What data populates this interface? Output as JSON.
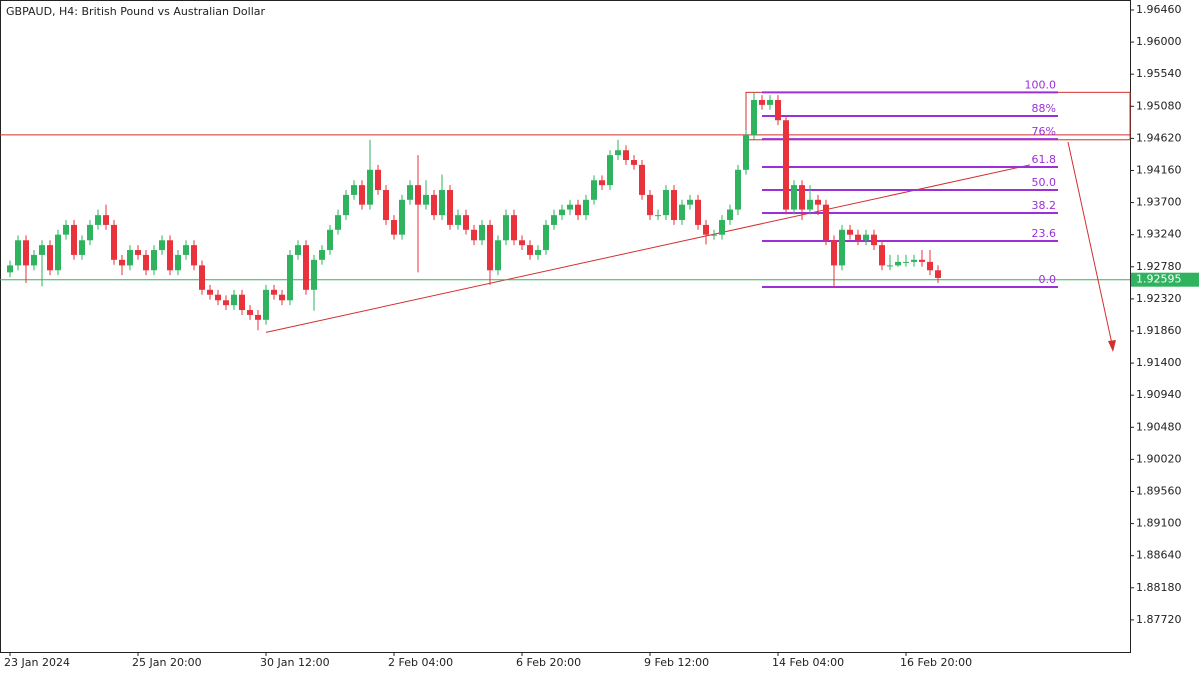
{
  "chart_data": {
    "type": "candlestick",
    "title": "GBPAUD, H4:  British Pound vs Australian Dollar",
    "up_color": "#2fb35e",
    "down_color": "#e8323c",
    "ylim": [
      1.8726,
      1.96603
    ],
    "yticks": [
      {
        "value": 1.9646,
        "label": "1.96460"
      },
      {
        "value": 1.96,
        "label": "1.96000"
      },
      {
        "value": 1.9554,
        "label": "1.95540"
      },
      {
        "value": 1.9508,
        "label": "1.95080"
      },
      {
        "value": 1.9462,
        "label": "1.94620"
      },
      {
        "value": 1.9416,
        "label": "1.94160"
      },
      {
        "value": 1.937,
        "label": "1.93700"
      },
      {
        "value": 1.9324,
        "label": "1.93240"
      },
      {
        "value": 1.9278,
        "label": "1.92780"
      },
      {
        "value": 1.9232,
        "label": "1.92320"
      },
      {
        "value": 1.9186,
        "label": "1.91860"
      },
      {
        "value": 1.914,
        "label": "1.91400"
      },
      {
        "value": 1.9094,
        "label": "1.90940"
      },
      {
        "value": 1.9048,
        "label": "1.90480"
      },
      {
        "value": 1.9002,
        "label": "1.90020"
      },
      {
        "value": 1.8956,
        "label": "1.89560"
      },
      {
        "value": 1.891,
        "label": "1.89100"
      },
      {
        "value": 1.8864,
        "label": "1.88640"
      },
      {
        "value": 1.8818,
        "label": "1.88180"
      },
      {
        "value": 1.8772,
        "label": "1.87720"
      }
    ],
    "x_labels": [
      {
        "index": 0,
        "label": "23 Jan 2024"
      },
      {
        "index": 16,
        "label": "25 Jan 20:00"
      },
      {
        "index": 32,
        "label": "30 Jan 12:00"
      },
      {
        "index": 48,
        "label": "2 Feb 04:00"
      },
      {
        "index": 64,
        "label": "6 Feb 20:00"
      },
      {
        "index": 80,
        "label": "9 Feb 12:00"
      },
      {
        "index": 96,
        "label": "14 Feb 04:00"
      },
      {
        "index": 112,
        "label": "16 Feb 20:00"
      }
    ],
    "current_price": {
      "value": 1.92595,
      "label": "1.92595",
      "color": "#2fb35e"
    },
    "resistance": {
      "value": 1.9467,
      "color": "#d32f2f"
    },
    "box": {
      "start": 92,
      "top": 1.9528,
      "bottom": 1.946,
      "color": "#d32f2f"
    },
    "trendline": {
      "start": [
        32,
        1.9184
      ],
      "end": [
        127.5,
        1.9424
      ],
      "color": "#d32f2f"
    },
    "fib": {
      "start": 94,
      "color": "#9b30d9",
      "levels": [
        {
          "value": 1.9528,
          "label": "100.0"
        },
        {
          "value": 1.9494,
          "label": "88%"
        },
        {
          "value": 1.9461,
          "label": "76%"
        },
        {
          "value": 1.9421,
          "label": "61.8"
        },
        {
          "value": 1.9388,
          "label": "50.0"
        },
        {
          "value": 1.9355,
          "label": "38.2"
        },
        {
          "value": 1.9315,
          "label": "23.6"
        },
        {
          "value": 1.9249,
          "label": "0.0"
        }
      ]
    },
    "ohlc": [
      [
        1.927,
        1.9287,
        1.9263,
        1.928
      ],
      [
        1.928,
        1.9323,
        1.9273,
        1.9316
      ],
      [
        1.9316,
        1.9323,
        1.9255,
        1.928
      ],
      [
        1.928,
        1.9302,
        1.9273,
        1.9295
      ],
      [
        1.9295,
        1.9316,
        1.925,
        1.9309
      ],
      [
        1.9309,
        1.9316,
        1.9266,
        1.9273
      ],
      [
        1.9273,
        1.9331,
        1.9266,
        1.9324
      ],
      [
        1.9324,
        1.9345,
        1.9317,
        1.9338
      ],
      [
        1.9338,
        1.9345,
        1.9288,
        1.9295
      ],
      [
        1.9295,
        1.9323,
        1.9288,
        1.9316
      ],
      [
        1.9316,
        1.9345,
        1.9309,
        1.9338
      ],
      [
        1.9338,
        1.936,
        1.9331,
        1.9352
      ],
      [
        1.9352,
        1.9367,
        1.9331,
        1.9338
      ],
      [
        1.9338,
        1.9345,
        1.9281,
        1.9288
      ],
      [
        1.9288,
        1.9295,
        1.9266,
        1.928
      ],
      [
        1.928,
        1.9309,
        1.9273,
        1.9302
      ],
      [
        1.9302,
        1.9309,
        1.9288,
        1.9295
      ],
      [
        1.9295,
        1.9302,
        1.9266,
        1.9273
      ],
      [
        1.9273,
        1.9309,
        1.9266,
        1.9302
      ],
      [
        1.9302,
        1.9323,
        1.9295,
        1.9316
      ],
      [
        1.9316,
        1.9323,
        1.9266,
        1.9273
      ],
      [
        1.9273,
        1.9302,
        1.9266,
        1.9295
      ],
      [
        1.9295,
        1.9316,
        1.9288,
        1.9309
      ],
      [
        1.9309,
        1.9316,
        1.9273,
        1.928
      ],
      [
        1.928,
        1.9287,
        1.9238,
        1.9245
      ],
      [
        1.9245,
        1.9252,
        1.9231,
        1.9238
      ],
      [
        1.9238,
        1.9245,
        1.9223,
        1.923
      ],
      [
        1.923,
        1.9237,
        1.9216,
        1.9223
      ],
      [
        1.9223,
        1.9245,
        1.9216,
        1.9238
      ],
      [
        1.9238,
        1.9245,
        1.9209,
        1.9216
      ],
      [
        1.9216,
        1.9223,
        1.9202,
        1.9209
      ],
      [
        1.9209,
        1.9216,
        1.9187,
        1.9202
      ],
      [
        1.9202,
        1.9252,
        1.9195,
        1.9245
      ],
      [
        1.9245,
        1.9252,
        1.9231,
        1.9238
      ],
      [
        1.9238,
        1.9245,
        1.9223,
        1.923
      ],
      [
        1.923,
        1.9302,
        1.9223,
        1.9295
      ],
      [
        1.9295,
        1.9316,
        1.9288,
        1.9309
      ],
      [
        1.9309,
        1.9316,
        1.9238,
        1.9245
      ],
      [
        1.9245,
        1.9295,
        1.9215,
        1.9288
      ],
      [
        1.9288,
        1.9309,
        1.9281,
        1.9302
      ],
      [
        1.9302,
        1.9338,
        1.9295,
        1.9331
      ],
      [
        1.9331,
        1.936,
        1.9324,
        1.9352
      ],
      [
        1.9352,
        1.9388,
        1.9345,
        1.9381
      ],
      [
        1.9381,
        1.9402,
        1.9374,
        1.9395
      ],
      [
        1.9395,
        1.9402,
        1.936,
        1.9367
      ],
      [
        1.9367,
        1.946,
        1.936,
        1.9417
      ],
      [
        1.9417,
        1.9424,
        1.9381,
        1.9388
      ],
      [
        1.9388,
        1.9395,
        1.9338,
        1.9345
      ],
      [
        1.9345,
        1.9352,
        1.9317,
        1.9324
      ],
      [
        1.9324,
        1.9381,
        1.9317,
        1.9374
      ],
      [
        1.9374,
        1.9402,
        1.9367,
        1.9395
      ],
      [
        1.9395,
        1.9438,
        1.927,
        1.9367
      ],
      [
        1.9367,
        1.9402,
        1.936,
        1.9381
      ],
      [
        1.9381,
        1.9388,
        1.9345,
        1.9352
      ],
      [
        1.9352,
        1.941,
        1.9345,
        1.9388
      ],
      [
        1.9388,
        1.9395,
        1.9331,
        1.9338
      ],
      [
        1.9338,
        1.936,
        1.9331,
        1.9352
      ],
      [
        1.9352,
        1.936,
        1.9324,
        1.9331
      ],
      [
        1.9331,
        1.9338,
        1.9309,
        1.9316
      ],
      [
        1.9316,
        1.9345,
        1.9309,
        1.9338
      ],
      [
        1.9338,
        1.9345,
        1.9252,
        1.9273
      ],
      [
        1.9273,
        1.9323,
        1.9266,
        1.9316
      ],
      [
        1.9316,
        1.936,
        1.9309,
        1.9352
      ],
      [
        1.9352,
        1.936,
        1.9309,
        1.9316
      ],
      [
        1.9316,
        1.9323,
        1.9302,
        1.9309
      ],
      [
        1.9309,
        1.9316,
        1.9288,
        1.9295
      ],
      [
        1.9295,
        1.9309,
        1.9288,
        1.9302
      ],
      [
        1.9302,
        1.9345,
        1.9295,
        1.9338
      ],
      [
        1.9338,
        1.936,
        1.9331,
        1.9352
      ],
      [
        1.9352,
        1.9367,
        1.9345,
        1.936
      ],
      [
        1.936,
        1.9374,
        1.9352,
        1.9367
      ],
      [
        1.9367,
        1.9374,
        1.9345,
        1.9352
      ],
      [
        1.9352,
        1.9381,
        1.9345,
        1.9374
      ],
      [
        1.9374,
        1.9409,
        1.9367,
        1.9402
      ],
      [
        1.9402,
        1.9409,
        1.9388,
        1.9395
      ],
      [
        1.9395,
        1.9445,
        1.9388,
        1.9438
      ],
      [
        1.9438,
        1.946,
        1.9431,
        1.9445
      ],
      [
        1.9445,
        1.9452,
        1.9424,
        1.9431
      ],
      [
        1.9431,
        1.9438,
        1.9417,
        1.9424
      ],
      [
        1.9424,
        1.9431,
        1.9374,
        1.9381
      ],
      [
        1.9381,
        1.9388,
        1.9345,
        1.9352
      ],
      [
        1.9352,
        1.936,
        1.9345,
        1.9352
      ],
      [
        1.9352,
        1.9395,
        1.9345,
        1.9388
      ],
      [
        1.9388,
        1.9395,
        1.9338,
        1.9345
      ],
      [
        1.9345,
        1.9374,
        1.9338,
        1.9367
      ],
      [
        1.9367,
        1.9381,
        1.936,
        1.9374
      ],
      [
        1.9374,
        1.9381,
        1.9331,
        1.9338
      ],
      [
        1.9338,
        1.9345,
        1.931,
        1.9324
      ],
      [
        1.9324,
        1.9331,
        1.9317,
        1.9324
      ],
      [
        1.9324,
        1.9352,
        1.9317,
        1.9345
      ],
      [
        1.9345,
        1.9367,
        1.9338,
        1.936
      ],
      [
        1.936,
        1.9424,
        1.9352,
        1.9417
      ],
      [
        1.9417,
        1.9474,
        1.941,
        1.9467
      ],
      [
        1.9467,
        1.9528,
        1.946,
        1.9517
      ],
      [
        1.9517,
        1.9524,
        1.9503,
        1.951
      ],
      [
        1.951,
        1.9524,
        1.9503,
        1.9517
      ],
      [
        1.9517,
        1.9524,
        1.9481,
        1.9488
      ],
      [
        1.9488,
        1.9495,
        1.9353,
        1.936
      ],
      [
        1.936,
        1.9402,
        1.9353,
        1.9395
      ],
      [
        1.9395,
        1.9402,
        1.9345,
        1.936
      ],
      [
        1.936,
        1.9395,
        1.9353,
        1.9374
      ],
      [
        1.9374,
        1.9381,
        1.9352,
        1.9367
      ],
      [
        1.9367,
        1.9374,
        1.9309,
        1.9316
      ],
      [
        1.9316,
        1.9323,
        1.9249,
        1.928
      ],
      [
        1.928,
        1.9338,
        1.9273,
        1.9331
      ],
      [
        1.9331,
        1.9338,
        1.9317,
        1.9324
      ],
      [
        1.9324,
        1.9331,
        1.9309,
        1.9316
      ],
      [
        1.9316,
        1.9331,
        1.9309,
        1.9324
      ],
      [
        1.9324,
        1.9331,
        1.9302,
        1.9309
      ],
      [
        1.9309,
        1.9316,
        1.9273,
        1.928
      ],
      [
        1.928,
        1.9295,
        1.9273,
        1.928
      ],
      [
        1.928,
        1.9295,
        1.9278,
        1.9285
      ],
      [
        1.9285,
        1.9295,
        1.9278,
        1.9285
      ],
      [
        1.9285,
        1.9295,
        1.9278,
        1.9288
      ],
      [
        1.9288,
        1.9302,
        1.9278,
        1.9285
      ],
      [
        1.9285,
        1.9302,
        1.9266,
        1.9273
      ],
      [
        1.9273,
        1.928,
        1.9255,
        1.9262
      ]
    ]
  }
}
